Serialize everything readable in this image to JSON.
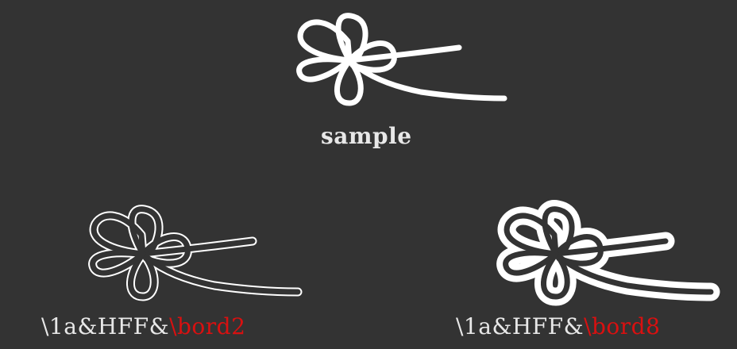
{
  "colors": {
    "background": "#333333",
    "text": "#e8e8e8",
    "highlight": "#d91010",
    "shape": "#ffffff"
  },
  "samples": [
    {
      "icon": "clover-flower-icon",
      "style": "solid-stroke",
      "caption": {
        "plain": "sample",
        "highlight": ""
      }
    },
    {
      "icon": "clover-flower-icon",
      "style": "transparent-fill-border-2",
      "caption": {
        "plain": "\\1a&HFF&",
        "highlight": "\\bord2"
      }
    },
    {
      "icon": "clover-flower-icon",
      "style": "transparent-fill-border-8",
      "caption": {
        "plain": "\\1a&HFF&",
        "highlight": "\\bord8"
      }
    }
  ]
}
